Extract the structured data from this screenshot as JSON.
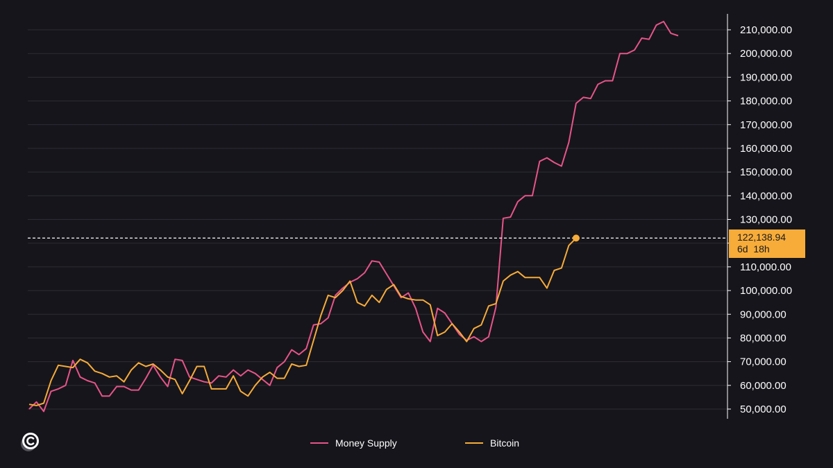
{
  "chart_data": {
    "type": "line",
    "title": "",
    "xlabel": "",
    "ylabel": "",
    "ylim": [
      45000,
      215000
    ],
    "y_ticks": [
      50000,
      60000,
      70000,
      80000,
      90000,
      100000,
      110000,
      120000,
      130000,
      140000,
      150000,
      160000,
      170000,
      180000,
      190000,
      200000,
      210000
    ],
    "y_tick_labels": [
      "50,000.00",
      "60,000.00",
      "70,000.00",
      "80,000.00",
      "90,000.00",
      "100,000.00",
      "110,000.00",
      "120,000.00",
      "130,000.00",
      "140,000.00",
      "150,000.00",
      "160,000.00",
      "170,000.00",
      "180,000.00",
      "190,000.00",
      "200,000.00",
      "210,000.00"
    ],
    "grid": true,
    "legend_position": "bottom-center",
    "series": [
      {
        "name": "Money Supply",
        "color": "#e8548a",
        "values": [
          50000,
          53000,
          49000,
          57500,
          58500,
          60000,
          70500,
          63500,
          62000,
          61000,
          55500,
          55500,
          59500,
          59500,
          58000,
          58000,
          63000,
          68500,
          63500,
          59500,
          71000,
          70500,
          63500,
          62500,
          61500,
          61000,
          64000,
          63500,
          66500,
          64000,
          66500,
          65000,
          62500,
          60000,
          67500,
          70000,
          75000,
          73000,
          75500,
          85500,
          86000,
          88500,
          98000,
          101000,
          103500,
          105000,
          107500,
          112500,
          112000,
          107000,
          102000,
          97000,
          99000,
          92500,
          82500,
          78500,
          92500,
          90500,
          86000,
          81500,
          79000,
          80500,
          78500,
          80500,
          93000,
          130500,
          131000,
          137500,
          140000,
          140000,
          154500,
          156000,
          154000,
          152500,
          162500,
          179000,
          181500,
          181000,
          187000,
          188500,
          188500,
          200000,
          200000,
          201500,
          206500,
          206000,
          212000,
          213500,
          208500,
          207500
        ]
      },
      {
        "name": "Bitcoin",
        "color": "#f7ac3a",
        "values": [
          52000,
          51500,
          52500,
          62000,
          68500,
          68000,
          67500,
          71000,
          69500,
          66000,
          65000,
          63500,
          64000,
          61500,
          66500,
          69500,
          68000,
          69000,
          66500,
          63500,
          62500,
          56500,
          62000,
          68000,
          68000,
          58500,
          58500,
          58500,
          64000,
          57500,
          55500,
          60000,
          63500,
          65500,
          63000,
          63000,
          69000,
          68000,
          68500,
          79000,
          89500,
          98000,
          97000,
          100000,
          104000,
          95000,
          93500,
          98000,
          95000,
          100500,
          102500,
          97500,
          96500,
          96000,
          96000,
          94000,
          81000,
          82500,
          86000,
          82500,
          78500,
          84000,
          85500,
          93500,
          94500,
          104000,
          106500,
          108000,
          105500,
          105500,
          105500,
          101000,
          108500,
          109500,
          119000,
          122138.94
        ]
      }
    ],
    "current_price_label": "122,138.94",
    "current_time_label": "6d  18h",
    "current_value": 122138.94
  },
  "legend": {
    "items": [
      {
        "label": "Money Supply",
        "color": "#e8548a"
      },
      {
        "label": "Bitcoin",
        "color": "#f7ac3a"
      }
    ]
  },
  "colors": {
    "background": "#16151b",
    "grid": "#2e2d35",
    "axis": "#ffffff",
    "badge": "#f7ac3a"
  },
  "logo": {
    "icon": "c-logo-icon"
  }
}
